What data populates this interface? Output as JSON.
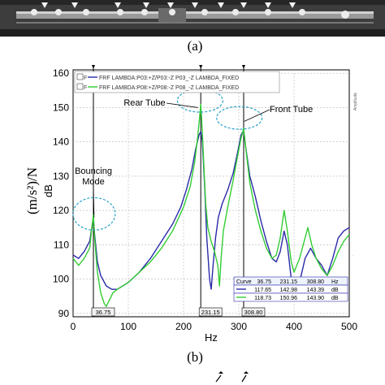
{
  "figure": {
    "caption_top": "(a)",
    "caption_bottom": "(b)"
  },
  "chart_data": {
    "type": "line",
    "xlabel": "Hz",
    "ylabel_units": "(m/s²)/N",
    "ylabel_scale": "dB",
    "right_axis_label": "Amplitude",
    "xlim": [
      0,
      500
    ],
    "ylim": [
      89,
      161
    ],
    "xticks": [
      0,
      100,
      200,
      300,
      400,
      500
    ],
    "yticks": [
      90,
      100,
      110,
      120,
      130,
      140,
      150,
      160
    ],
    "grid": true,
    "legend": {
      "position": "top",
      "entries": [
        {
          "marker": "F",
          "label": "FRF LAMBDA:P03:+Z/P03:-Z P03_-Z LAMBDA_FIXED",
          "color": "#2a2aa8"
        },
        {
          "marker": "F",
          "label": "FRF LAMBDA:P08:+Z/P08:-Z P08_-Z LAMBDA_FIXED",
          "color": "#33cc33"
        }
      ]
    },
    "cursor_lines": [
      36.75,
      231.15,
      308.8
    ],
    "cursor_labels": [
      "36.75",
      "231.15",
      "308.80"
    ],
    "annotations": [
      {
        "text": "Bouncing",
        "x": 38,
        "y": 121
      },
      {
        "text": "Rear Tube",
        "x": 231,
        "y": 152
      },
      {
        "text": "Front Tube",
        "x": 309,
        "y": 148
      }
    ],
    "annotation_line2": "Mode",
    "cursor_table": {
      "header": [
        "Curve",
        "36.75",
        "231.15",
        "308.80",
        "Hz"
      ],
      "rows": [
        {
          "values": [
            "117.65",
            "142.98",
            "143.39"
          ],
          "unit": "dB",
          "color": "#2a2aa8"
        },
        {
          "values": [
            "118.73",
            "150.96",
            "143.90"
          ],
          "unit": "dB",
          "color": "#33cc33"
        }
      ]
    },
    "series": [
      {
        "color": "#2a2aa8",
        "points": [
          [
            0,
            107
          ],
          [
            10,
            106
          ],
          [
            20,
            108
          ],
          [
            30,
            111
          ],
          [
            34,
            115
          ],
          [
            36.75,
            117.65
          ],
          [
            39,
            113
          ],
          [
            44,
            105
          ],
          [
            50,
            101
          ],
          [
            60,
            98
          ],
          [
            70,
            97
          ],
          [
            80,
            97
          ],
          [
            90,
            98
          ],
          [
            100,
            99
          ],
          [
            120,
            102
          ],
          [
            140,
            106
          ],
          [
            160,
            111
          ],
          [
            180,
            116
          ],
          [
            195,
            121
          ],
          [
            205,
            126
          ],
          [
            215,
            132
          ],
          [
            222,
            138
          ],
          [
            228,
            142
          ],
          [
            231.15,
            142.98
          ],
          [
            234,
            140
          ],
          [
            238,
            128
          ],
          [
            242,
            112
          ],
          [
            245,
            105
          ],
          [
            247,
            100
          ],
          [
            250,
            97
          ],
          [
            254,
            105
          ],
          [
            258,
            112
          ],
          [
            263,
            118
          ],
          [
            270,
            122
          ],
          [
            280,
            126
          ],
          [
            290,
            131
          ],
          [
            298,
            137
          ],
          [
            304,
            142
          ],
          [
            308.8,
            143.39
          ],
          [
            312,
            139
          ],
          [
            320,
            130
          ],
          [
            330,
            124
          ],
          [
            340,
            117
          ],
          [
            350,
            111
          ],
          [
            360,
            106
          ],
          [
            368,
            105
          ],
          [
            375,
            108
          ],
          [
            382,
            114
          ],
          [
            388,
            110
          ],
          [
            395,
            100
          ],
          [
            400,
            96
          ],
          [
            410,
            99
          ],
          [
            420,
            106
          ],
          [
            430,
            109
          ],
          [
            440,
            106
          ],
          [
            450,
            104
          ],
          [
            460,
            101
          ],
          [
            470,
            106
          ],
          [
            480,
            112
          ],
          [
            490,
            114
          ],
          [
            500,
            115
          ]
        ]
      },
      {
        "color": "#33cc33",
        "points": [
          [
            0,
            106
          ],
          [
            10,
            104
          ],
          [
            20,
            106
          ],
          [
            30,
            109
          ],
          [
            34,
            115
          ],
          [
            36.75,
            118.73
          ],
          [
            39,
            112
          ],
          [
            44,
            102
          ],
          [
            50,
            96
          ],
          [
            56,
            93
          ],
          [
            60,
            92
          ],
          [
            66,
            94
          ],
          [
            72,
            96
          ],
          [
            80,
            97
          ],
          [
            100,
            99
          ],
          [
            120,
            102
          ],
          [
            140,
            105
          ],
          [
            160,
            109
          ],
          [
            180,
            114
          ],
          [
            200,
            121
          ],
          [
            212,
            127
          ],
          [
            220,
            134
          ],
          [
            226,
            142
          ],
          [
            231.15,
            150.96
          ],
          [
            234,
            143
          ],
          [
            237,
            132
          ],
          [
            240,
            122
          ],
          [
            244,
            115
          ],
          [
            250,
            111
          ],
          [
            256,
            108
          ],
          [
            262,
            104
          ],
          [
            265,
            98
          ],
          [
            268,
            106
          ],
          [
            272,
            114
          ],
          [
            280,
            121
          ],
          [
            290,
            129
          ],
          [
            298,
            136
          ],
          [
            304,
            141
          ],
          [
            308.8,
            143.9
          ],
          [
            312,
            139
          ],
          [
            320,
            128
          ],
          [
            330,
            120
          ],
          [
            340,
            114
          ],
          [
            350,
            109
          ],
          [
            360,
            106
          ],
          [
            368,
            107
          ],
          [
            375,
            112
          ],
          [
            382,
            120
          ],
          [
            388,
            114
          ],
          [
            395,
            105
          ],
          [
            400,
            102
          ],
          [
            410,
            106
          ],
          [
            420,
            112
          ],
          [
            425,
            115
          ],
          [
            432,
            110
          ],
          [
            440,
            106
          ],
          [
            450,
            103
          ],
          [
            460,
            101
          ],
          [
            470,
            104
          ],
          [
            480,
            108
          ],
          [
            490,
            111
          ],
          [
            500,
            113
          ]
        ]
      }
    ]
  }
}
